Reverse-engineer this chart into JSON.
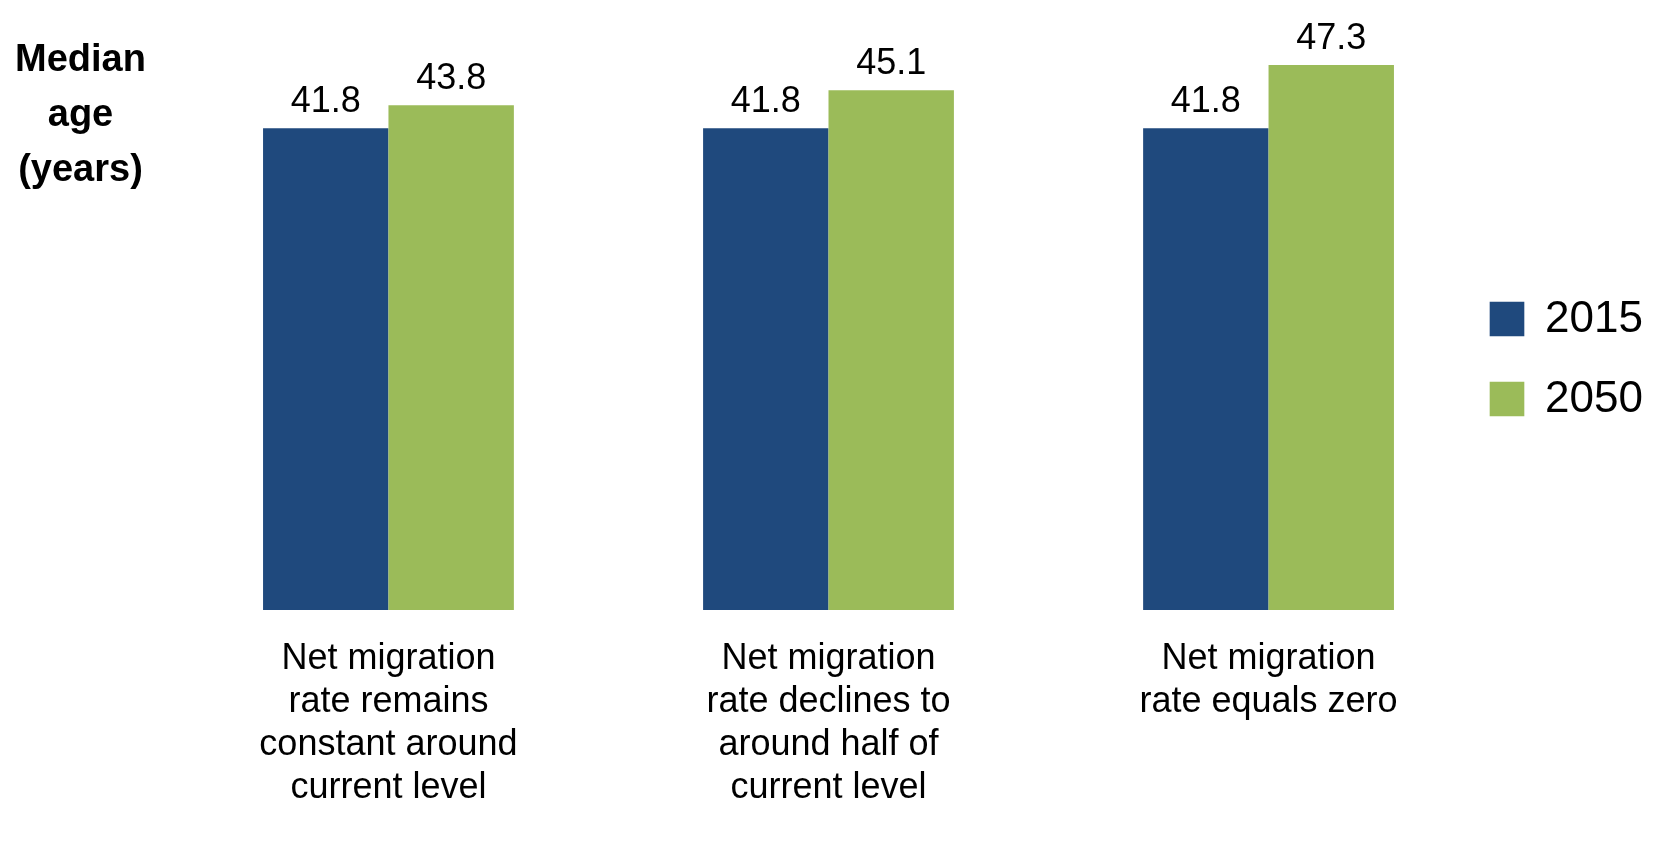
{
  "chart_data": {
    "type": "bar",
    "ylabel": "Median age (years)",
    "categories": [
      "Net migration rate remains constant around current level",
      "Net migration rate declines to around half of current level",
      "Net migration rate equals zero"
    ],
    "series": [
      {
        "name": "2015",
        "color": "#1f497d",
        "values": [
          41.8,
          41.8,
          41.8
        ]
      },
      {
        "name": "2050",
        "color": "#9bbb59",
        "values": [
          43.8,
          45.1,
          47.3
        ]
      }
    ],
    "data_labels": true,
    "legend": "right",
    "grid": false
  }
}
